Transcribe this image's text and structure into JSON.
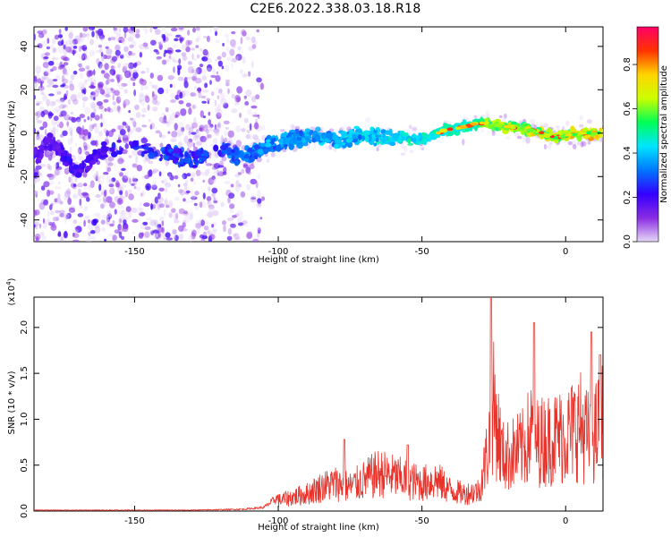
{
  "title": "C2E6.2022.338.03.18.R18",
  "chart_data": [
    {
      "type": "heatmap",
      "xlabel": "Height of straight line (km)",
      "ylabel": "Frequency (Hz)",
      "xlim": [
        -185,
        13
      ],
      "ylim": [
        -50,
        49
      ],
      "xticks": [
        -150,
        -100,
        -50,
        0
      ],
      "yticks": [
        -40,
        -20,
        0,
        20,
        40
      ],
      "colorbar": {
        "label": "Normalized spectral amplitude",
        "range": [
          0,
          0.97
        ],
        "ticks": [
          0.0,
          0.2,
          0.4,
          0.6,
          0.8
        ],
        "colormap": [
          "#e6d9f7",
          "#8a2be2",
          "#3300ff",
          "#0077ff",
          "#00e5ff",
          "#00ff55",
          "#ccff00",
          "#ffd400",
          "#ff3300",
          "#ff0066"
        ]
      },
      "ridge": {
        "x": [
          -183,
          -180,
          -175,
          -170,
          -165,
          -160,
          -150,
          -140,
          -130,
          -120,
          -110,
          -100,
          -90,
          -80,
          -70,
          -60,
          -50,
          -45,
          -40,
          -35,
          -30,
          -25,
          -20,
          -15,
          -10,
          -5,
          0,
          5,
          10,
          12
        ],
        "y": [
          -10,
          -3,
          -10,
          -18,
          -12,
          -8,
          -6,
          -9,
          -12,
          -8,
          -10,
          -4,
          -2,
          -3,
          -1,
          -2,
          -3,
          0,
          2,
          3,
          5,
          4,
          3,
          2,
          1,
          -2,
          -1,
          0,
          0,
          0
        ]
      },
      "grid": false
    },
    {
      "type": "line",
      "xlabel": "Height of straight line (km)",
      "ylabel": "SNR (10 * v/v)",
      "exponent_label": "(x10",
      "exponent_sup": "4",
      "exponent_close": ")",
      "xlim": [
        -185,
        13
      ],
      "ylim": [
        0,
        2.33
      ],
      "xticks": [
        -150,
        -100,
        -50,
        0
      ],
      "yticks": [
        0.0,
        0.5,
        1.0,
        1.5,
        2.0
      ],
      "color": "#e8322a",
      "envelope": {
        "x": [
          -185,
          -160,
          -130,
          -112,
          -105,
          -100,
          -95,
          -90,
          -85,
          -80,
          -75,
          -70,
          -65,
          -60,
          -55,
          -50,
          -45,
          -40,
          -35,
          -30,
          -27,
          -25,
          -22,
          -20,
          -15,
          -12,
          -10,
          -5,
          0,
          5,
          8,
          10,
          12,
          13
        ],
        "y": [
          0.01,
          0.01,
          0.01,
          0.02,
          0.04,
          0.15,
          0.2,
          0.25,
          0.35,
          0.4,
          0.35,
          0.45,
          0.55,
          0.5,
          0.45,
          0.4,
          0.45,
          0.3,
          0.25,
          0.3,
          0.9,
          1.5,
          0.8,
          0.8,
          0.9,
          1.15,
          1.0,
          1.05,
          1.1,
          1.25,
          1.05,
          1.1,
          1.25,
          1.4
        ]
      },
      "peaks": [
        {
          "x": -26,
          "y": 2.33
        },
        {
          "x": -11,
          "y": 2.05
        },
        {
          "x": 9,
          "y": 1.95
        },
        {
          "x": -77,
          "y": 0.78
        },
        {
          "x": -55,
          "y": 0.72
        },
        {
          "x": 12,
          "y": 1.7
        }
      ],
      "grid": false
    }
  ]
}
